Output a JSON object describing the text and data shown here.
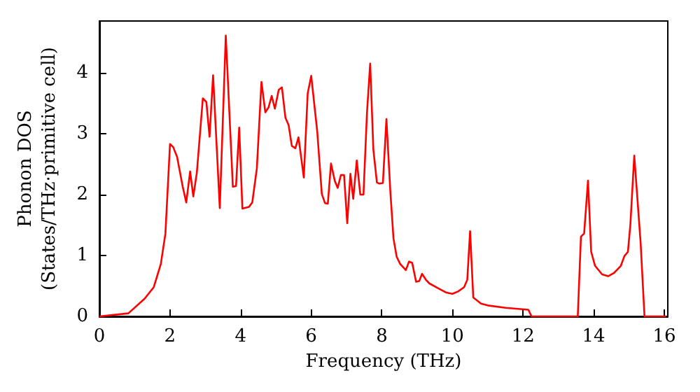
{
  "chart_data": {
    "type": "line",
    "xlabel": "Frequency (THz)",
    "ylabel": "Phonon DOS\n(States/THz·primitive cell)",
    "x": [
      0,
      0.82,
      1.28,
      1.54,
      1.74,
      1.87,
      2.0,
      2.09,
      2.2,
      2.36,
      2.46,
      2.57,
      2.66,
      2.76,
      2.93,
      3.03,
      3.12,
      3.22,
      3.41,
      3.58,
      3.78,
      3.87,
      3.96,
      4.05,
      4.24,
      4.33,
      4.46,
      4.59,
      4.7,
      4.79,
      4.88,
      4.97,
      5.08,
      5.17,
      5.27,
      5.36,
      5.45,
      5.55,
      5.64,
      5.79,
      5.9,
      6.0,
      6.17,
      6.3,
      6.39,
      6.47,
      6.56,
      6.67,
      6.75,
      6.84,
      6.93,
      7.02,
      7.11,
      7.19,
      7.29,
      7.39,
      7.48,
      7.58,
      7.67,
      7.76,
      7.86,
      7.93,
      8.03,
      8.13,
      8.24,
      8.33,
      8.42,
      8.52,
      8.68,
      8.77,
      8.86,
      8.97,
      9.06,
      9.14,
      9.25,
      9.35,
      9.57,
      9.83,
      10.0,
      10.16,
      10.33,
      10.42,
      10.5,
      10.59,
      10.81,
      11.0,
      11.51,
      12.15,
      12.24,
      13.55,
      13.64,
      13.73,
      13.84,
      13.93,
      14.04,
      14.24,
      14.41,
      14.57,
      14.77,
      14.87,
      14.97,
      15.04,
      15.15,
      15.33,
      15.44,
      16.05
    ],
    "series": [
      {
        "color": "#ff0000",
        "values": [
          0,
          0.05,
          0.29,
          0.48,
          0.86,
          1.36,
          2.83,
          2.78,
          2.62,
          2.13,
          1.87,
          2.38,
          1.97,
          2.36,
          3.58,
          3.52,
          2.95,
          3.96,
          1.78,
          4.61,
          2.13,
          2.14,
          3.1,
          1.77,
          1.8,
          1.87,
          2.43,
          3.85,
          3.35,
          3.43,
          3.62,
          3.41,
          3.72,
          3.76,
          3.26,
          3.14,
          2.8,
          2.76,
          2.94,
          2.28,
          3.66,
          3.95,
          3.04,
          2.01,
          1.86,
          1.85,
          2.51,
          2.22,
          2.11,
          2.32,
          2.32,
          1.53,
          2.34,
          1.93,
          2.56,
          2.0,
          2.0,
          3.35,
          4.15,
          2.74,
          2.2,
          2.18,
          2.19,
          3.24,
          2.06,
          1.28,
          0.98,
          0.86,
          0.76,
          0.9,
          0.88,
          0.57,
          0.58,
          0.7,
          0.6,
          0.54,
          0.47,
          0.39,
          0.37,
          0.41,
          0.48,
          0.6,
          1.4,
          0.31,
          0.21,
          0.18,
          0.14,
          0.11,
          0,
          0,
          1.31,
          1.36,
          2.23,
          1.06,
          0.83,
          0.69,
          0.66,
          0.71,
          0.83,
          0.99,
          1.06,
          1.51,
          2.64,
          1.21,
          0,
          0
        ]
      }
    ],
    "xlim": [
      0,
      16.1
    ],
    "xticks": [
      0,
      2,
      4,
      6,
      8,
      10,
      12,
      14,
      16
    ],
    "ylim": [
      0,
      4.85
    ],
    "yticks": [
      0,
      1,
      2,
      3,
      4
    ],
    "grid": false,
    "marker": "none",
    "line_style": "solid"
  }
}
